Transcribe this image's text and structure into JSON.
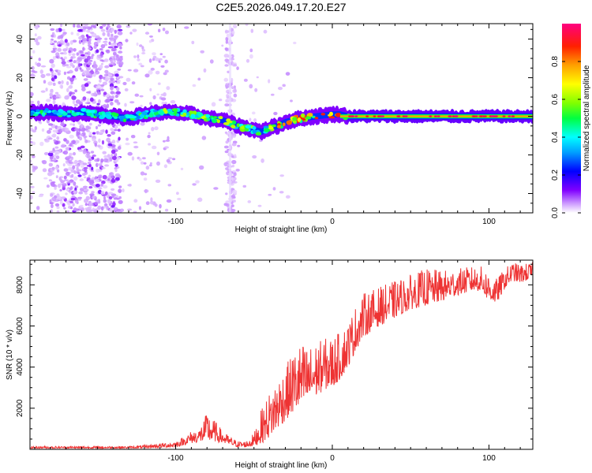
{
  "title": "C2E5.2026.049.17.20.E27",
  "chart_data": [
    {
      "type": "heatmap",
      "xlabel": "Height of straight line (km)",
      "ylabel": "Frequency (Hz)",
      "xlim": [
        -193,
        128
      ],
      "ylim": [
        -50,
        48
      ],
      "xticks": [
        -100,
        0,
        100
      ],
      "yticks": [
        -40,
        -20,
        0,
        20,
        40
      ],
      "colorbar": {
        "label": "Normalized spectral amplitude",
        "range": [
          0,
          1
        ],
        "ticks": [
          0.0,
          0.2,
          0.4,
          0.6,
          0.8
        ],
        "colors": [
          "#ffffff",
          "#cc99ff",
          "#8000ff",
          "#0000ff",
          "#00a0ff",
          "#00ffff",
          "#00ff40",
          "#80ff00",
          "#ffff00",
          "#ffa000",
          "#ff2000",
          "#ff0080"
        ]
      },
      "ridge": {
        "x": [
          -193,
          -180,
          -170,
          -160,
          -150,
          -140,
          -130,
          -120,
          -110,
          -100,
          -90,
          -80,
          -70,
          -60,
          -50,
          -45,
          -40,
          -35,
          -30,
          -25,
          -20,
          -10,
          0,
          5,
          10,
          20,
          50,
          100,
          128
        ],
        "y": [
          2,
          2,
          1,
          2,
          1,
          0,
          -1,
          1,
          2,
          2,
          1,
          -1,
          -2,
          -5,
          -7,
          -8,
          -6,
          -5,
          -3,
          -2,
          -1,
          0,
          1,
          1,
          0,
          0,
          0,
          0,
          0
        ]
      }
    },
    {
      "type": "line",
      "xlabel": "Height of straight line (km)",
      "ylabel": "SNR (10 * v/v)",
      "xlim": [
        -193,
        128
      ],
      "ylim": [
        0,
        9200
      ],
      "xticks": [
        -100,
        0,
        100
      ],
      "yticks": [
        2000,
        4000,
        6000,
        8000
      ],
      "series": [
        {
          "name": "SNR",
          "color": "#ee3333",
          "envelope": {
            "x": [
              -193,
              -170,
              -150,
              -130,
              -120,
              -110,
              -100,
              -95,
              -90,
              -85,
              -80,
              -75,
              -70,
              -65,
              -60,
              -55,
              -50,
              -45,
              -40,
              -35,
              -30,
              -25,
              -20,
              -15,
              -10,
              -5,
              0,
              5,
              10,
              15,
              20,
              30,
              40,
              50,
              60,
              70,
              80,
              90,
              95,
              100,
              105,
              110,
              115,
              120,
              128
            ],
            "low": [
              50,
              50,
              50,
              50,
              60,
              80,
              100,
              200,
              300,
              350,
              400,
              380,
              300,
              200,
              100,
              100,
              150,
              300,
              600,
              1000,
              1400,
              1800,
              2000,
              2300,
              2600,
              2900,
              3000,
              3400,
              4000,
              4800,
              5500,
              6000,
              6400,
              6800,
              7000,
              7200,
              7500,
              7700,
              7700,
              7200,
              7100,
              7800,
              8200,
              8100,
              8300
            ],
            "high": [
              150,
              150,
              150,
              150,
              200,
              300,
              400,
              600,
              900,
              1000,
              1800,
              1400,
              900,
              600,
              400,
              400,
              800,
              2000,
              2800,
              3500,
              4000,
              4800,
              5200,
              5000,
              5200,
              5400,
              5500,
              5700,
              6200,
              7000,
              7600,
              7900,
              8200,
              8500,
              8800,
              8700,
              8800,
              8900,
              8900,
              8600,
              8300,
              8800,
              9100,
              9000,
              9100
            ]
          }
        }
      ]
    }
  ]
}
